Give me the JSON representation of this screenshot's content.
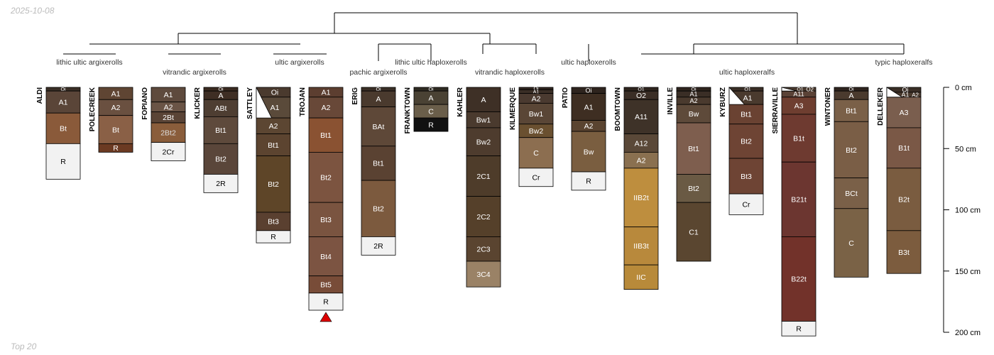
{
  "date_label": "2025-10-08",
  "footer_label": "Top 20",
  "depth_axis": {
    "unit": "cm",
    "max_depth": 200,
    "ticks": [
      {
        "depth": 0,
        "label": "0 cm"
      },
      {
        "depth": 50,
        "label": "50 cm"
      },
      {
        "depth": 100,
        "label": "100 cm"
      },
      {
        "depth": 150,
        "label": "150 cm"
      },
      {
        "depth": 200,
        "label": "200 cm"
      }
    ]
  },
  "group_labels": [
    {
      "text": "lithic ultic argixerolls",
      "profiles": [
        "ALDI",
        "POLECREEK"
      ]
    },
    {
      "text": "vitrandic argixerolls",
      "profiles": [
        "FOPIANO",
        "KLICKER"
      ]
    },
    {
      "text": "ultic argixerolls",
      "profiles": [
        "SATTLEY",
        "TROJAN"
      ]
    },
    {
      "text": "pachic argixerolls",
      "profiles": [
        "ERIG"
      ]
    },
    {
      "text": "lithic ultic haploxerolls",
      "profiles": [
        "FRANKTOWN"
      ]
    },
    {
      "text": "vitrandic haploxerolls",
      "profiles": [
        "KAHLER",
        "KILMERQUE"
      ]
    },
    {
      "text": "ultic haploxerolls",
      "profiles": [
        "PATIO"
      ]
    },
    {
      "text": "ultic haploxeralfs",
      "profiles": [
        "BOOMTOWN",
        "INVILLE",
        "KYBURZ",
        "SIERRAVILLE",
        "WINTONER"
      ]
    },
    {
      "text": "typic haploxeralfs",
      "profiles": [
        "DELLEKER"
      ]
    }
  ],
  "profiles": [
    {
      "name": "ALDI",
      "horizons": [
        {
          "name": "Oi",
          "top": 0,
          "bottom": 3,
          "color": "#3a2e26",
          "text": "#ffffff"
        },
        {
          "name": "A1",
          "top": 3,
          "bottom": 21,
          "color": "#5a4538",
          "text": "#ffffff"
        },
        {
          "name": "Bt",
          "top": 21,
          "bottom": 46,
          "color": "#8a5a3a",
          "text": "#ffffff"
        },
        {
          "name": "R",
          "top": 46,
          "bottom": 75,
          "color": "#f2f2f2",
          "text": "#000000"
        }
      ]
    },
    {
      "name": "POLECREEK",
      "horizons": [
        {
          "name": "A1",
          "top": 0,
          "bottom": 10,
          "color": "#5f4533",
          "text": "#ffffff"
        },
        {
          "name": "A2",
          "top": 10,
          "bottom": 23,
          "color": "#6a5040",
          "text": "#ffffff"
        },
        {
          "name": "Bt",
          "top": 23,
          "bottom": 46,
          "color": "#8a6046",
          "text": "#ffffff"
        },
        {
          "name": "R",
          "top": 46,
          "bottom": 53,
          "color": "#6b3a22",
          "text": "#ffffff"
        }
      ]
    },
    {
      "name": "FOPIANO",
      "horizons": [
        {
          "name": "A1",
          "top": 0,
          "bottom": 12,
          "color": "#5e4a3d",
          "text": "#ffffff"
        },
        {
          "name": "A2",
          "top": 12,
          "bottom": 20,
          "color": "#6a5446",
          "text": "#ffffff"
        },
        {
          "name": "2Bt",
          "top": 20,
          "bottom": 29,
          "color": "#5a4436",
          "text": "#ffffff"
        },
        {
          "name": "2Bt2",
          "top": 29,
          "bottom": 45,
          "color": "#8a5d3b",
          "text": "#dddddd"
        },
        {
          "name": "2Cr",
          "top": 45,
          "bottom": 60,
          "color": "#f2f2f2",
          "text": "#000000"
        }
      ]
    },
    {
      "name": "KLICKER",
      "horizons": [
        {
          "name": "Oi",
          "top": 0,
          "bottom": 3,
          "color": "#3a2a20",
          "text": "#ffffff"
        },
        {
          "name": "A",
          "top": 3,
          "bottom": 10,
          "color": "#3e2e24",
          "text": "#ffffff"
        },
        {
          "name": "ABt",
          "top": 10,
          "bottom": 24,
          "color": "#4e3e32",
          "text": "#ffffff"
        },
        {
          "name": "Bt1",
          "top": 24,
          "bottom": 46,
          "color": "#5e4a3c",
          "text": "#ffffff"
        },
        {
          "name": "Bt2",
          "top": 46,
          "bottom": 71,
          "color": "#5a463a",
          "text": "#ffffff"
        },
        {
          "name": "2R",
          "top": 71,
          "bottom": 86,
          "color": "#f2f2f2",
          "text": "#000000"
        }
      ]
    },
    {
      "name": "SATTLEY",
      "horizons": [
        {
          "name": "Oi",
          "top": 0,
          "bottom": 8,
          "color": "#4a3a2e",
          "text": "#ffffff",
          "diagonal": true
        },
        {
          "name": "A1",
          "top": 8,
          "bottom": 25,
          "color": "#5a4a3a",
          "text": "#ffffff",
          "diagonal": true
        },
        {
          "name": "A2",
          "top": 25,
          "bottom": 38,
          "color": "#5c4632",
          "text": "#ffffff"
        },
        {
          "name": "Bt1",
          "top": 38,
          "bottom": 56,
          "color": "#5c4430",
          "text": "#ffffff"
        },
        {
          "name": "Bt2",
          "top": 56,
          "bottom": 102,
          "color": "#5e4528",
          "text": "#ffffff"
        },
        {
          "name": "Bt3",
          "top": 102,
          "bottom": 117,
          "color": "#5a4030",
          "text": "#ffffff"
        },
        {
          "name": "R",
          "top": 117,
          "bottom": 127,
          "color": "#f2f2f2",
          "text": "#000000"
        }
      ]
    },
    {
      "name": "TROJAN",
      "horizons": [
        {
          "name": "A1",
          "top": 0,
          "bottom": 8,
          "color": "#5c3e30",
          "text": "#ffffff"
        },
        {
          "name": "A2",
          "top": 8,
          "bottom": 25,
          "color": "#684838",
          "text": "#ffffff"
        },
        {
          "name": "Bt1",
          "top": 25,
          "bottom": 53,
          "color": "#8a5232",
          "text": "#ffffff"
        },
        {
          "name": "Bt2",
          "top": 53,
          "bottom": 94,
          "color": "#7c5440",
          "text": "#ffffff"
        },
        {
          "name": "Bt3",
          "top": 94,
          "bottom": 122,
          "color": "#7a5440",
          "text": "#ffffff"
        },
        {
          "name": "Bt4",
          "top": 122,
          "bottom": 154,
          "color": "#7c5442",
          "text": "#ffffff"
        },
        {
          "name": "Bt5",
          "top": 154,
          "bottom": 168,
          "color": "#784c38",
          "text": "#ffffff"
        },
        {
          "name": "R",
          "top": 168,
          "bottom": 182,
          "color": "#f2f2f2",
          "text": "#000000"
        }
      ]
    },
    {
      "name": "ERIG",
      "horizons": [
        {
          "name": "Oi",
          "top": 0,
          "bottom": 3,
          "color": "#3a2e26",
          "text": "#ffffff"
        },
        {
          "name": "A",
          "top": 3,
          "bottom": 16,
          "color": "#4a3a2e",
          "text": "#ffffff"
        },
        {
          "name": "BAt",
          "top": 16,
          "bottom": 48,
          "color": "#5e4838",
          "text": "#ffffff"
        },
        {
          "name": "Bt1",
          "top": 48,
          "bottom": 76,
          "color": "#5a4232",
          "text": "#ffffff"
        },
        {
          "name": "Bt2",
          "top": 76,
          "bottom": 122,
          "color": "#7c5a3e",
          "text": "#ffffff"
        },
        {
          "name": "2R",
          "top": 122,
          "bottom": 137,
          "color": "#f2f2f2",
          "text": "#000000"
        }
      ]
    },
    {
      "name": "FRANKTOWN",
      "horizons": [
        {
          "name": "Oi",
          "top": 0,
          "bottom": 3,
          "color": "#2e2a22",
          "text": "#ffffff"
        },
        {
          "name": "A",
          "top": 3,
          "bottom": 14,
          "color": "#4a4234",
          "text": "#ffffff"
        },
        {
          "name": "C",
          "top": 14,
          "bottom": 25,
          "color": "#6a5e4a",
          "text": "#ffffff"
        },
        {
          "name": "R",
          "top": 25,
          "bottom": 36,
          "color": "#111111",
          "text": "#ffffff"
        }
      ]
    },
    {
      "name": "KAHLER",
      "horizons": [
        {
          "name": "A",
          "top": 0,
          "bottom": 20,
          "color": "#3e3026",
          "text": "#ffffff"
        },
        {
          "name": "Bw1",
          "top": 20,
          "bottom": 33,
          "color": "#4a3a2e",
          "text": "#ffffff"
        },
        {
          "name": "Bw2",
          "top": 33,
          "bottom": 56,
          "color": "#4e3c2e",
          "text": "#ffffff"
        },
        {
          "name": "2C1",
          "top": 56,
          "bottom": 89,
          "color": "#4e3c2a",
          "text": "#ffffff"
        },
        {
          "name": "2C2",
          "top": 89,
          "bottom": 122,
          "color": "#55402a",
          "text": "#ffffff"
        },
        {
          "name": "2C3",
          "top": 122,
          "bottom": 142,
          "color": "#5a4430",
          "text": "#ffffff"
        },
        {
          "name": "3C4",
          "top": 142,
          "bottom": 163,
          "color": "#9a8266",
          "text": "#ffffff"
        }
      ]
    },
    {
      "name": "KILMERQUE",
      "horizons": [
        {
          "name": "Oi",
          "top": 0,
          "bottom": 2,
          "color": "#2e241e",
          "text": "#ffffff"
        },
        {
          "name": "A1",
          "top": 2,
          "bottom": 5,
          "color": "#3a2e26",
          "text": "#ffffff"
        },
        {
          "name": "A2",
          "top": 5,
          "bottom": 13,
          "color": "#4a3a30",
          "text": "#ffffff"
        },
        {
          "name": "Bw1",
          "top": 13,
          "bottom": 30,
          "color": "#5a4636",
          "text": "#ffffff"
        },
        {
          "name": "Bw2",
          "top": 30,
          "bottom": 41,
          "color": "#6a5030",
          "text": "#ffffff"
        },
        {
          "name": "C",
          "top": 41,
          "bottom": 66,
          "color": "#8c6e50",
          "text": "#ffffff"
        },
        {
          "name": "Cr",
          "top": 66,
          "bottom": 81,
          "color": "#f2f2f2",
          "text": "#000000"
        }
      ]
    },
    {
      "name": "PATIO",
      "horizons": [
        {
          "name": "Oi",
          "top": 0,
          "bottom": 5,
          "color": "#2e241e",
          "text": "#ffffff"
        },
        {
          "name": "A1",
          "top": 5,
          "bottom": 27,
          "color": "#3e2e22",
          "text": "#ffffff"
        },
        {
          "name": "A2",
          "top": 27,
          "bottom": 36,
          "color": "#5a4430",
          "text": "#ffffff"
        },
        {
          "name": "Bw",
          "top": 36,
          "bottom": 69,
          "color": "#7a5e40",
          "text": "#ffffff"
        },
        {
          "name": "R",
          "top": 69,
          "bottom": 84,
          "color": "#f2f2f2",
          "text": "#000000"
        }
      ]
    },
    {
      "name": "BOOMTOWN",
      "horizons": [
        {
          "name": "O1",
          "top": 0,
          "bottom": 3,
          "color": "#2e241e",
          "text": "#ffffff"
        },
        {
          "name": "O2",
          "top": 3,
          "bottom": 10,
          "color": "#3a2e26",
          "text": "#ffffff"
        },
        {
          "name": "A11",
          "top": 10,
          "bottom": 38,
          "color": "#3e3228",
          "text": "#ffffff"
        },
        {
          "name": "A12",
          "top": 38,
          "bottom": 53,
          "color": "#5a4838",
          "text": "#ffffff"
        },
        {
          "name": "A2",
          "top": 53,
          "bottom": 66,
          "color": "#8a7050",
          "text": "#ffffff"
        },
        {
          "name": "IIB2t",
          "top": 66,
          "bottom": 114,
          "color": "#be8e3e",
          "text": "#ffffff"
        },
        {
          "name": "IIB3t",
          "top": 114,
          "bottom": 145,
          "color": "#b8893c",
          "text": "#ffffff"
        },
        {
          "name": "IIC",
          "top": 145,
          "bottom": 165,
          "color": "#b88a3a",
          "text": "#ffffff"
        }
      ]
    },
    {
      "name": "INVILLE",
      "horizons": [
        {
          "name": "Oi",
          "top": 0,
          "bottom": 3,
          "color": "#2e241e",
          "text": "#ffffff"
        },
        {
          "name": "A1",
          "top": 3,
          "bottom": 8,
          "color": "#3a2e26",
          "text": "#ffffff"
        },
        {
          "name": "A2",
          "top": 8,
          "bottom": 14,
          "color": "#4a3a2e",
          "text": "#ffffff"
        },
        {
          "name": "Bw",
          "top": 14,
          "bottom": 29,
          "color": "#5e4a3a",
          "text": "#ffffff"
        },
        {
          "name": "Bt1",
          "top": 29,
          "bottom": 71,
          "color": "#7e5e4e",
          "text": "#ffffff"
        },
        {
          "name": "Bt2",
          "top": 71,
          "bottom": 94,
          "color": "#6a5a44",
          "text": "#ffffff"
        },
        {
          "name": "C1",
          "top": 94,
          "bottom": 142,
          "color": "#5a4630",
          "text": "#ffffff"
        }
      ]
    },
    {
      "name": "KYBURZ",
      "horizons": [
        {
          "name": "O1",
          "top": 0,
          "bottom": 3,
          "color": "#3a2e26",
          "text": "#ffffff",
          "diagonal": true
        },
        {
          "name": "A1",
          "top": 3,
          "bottom": 14,
          "color": "#4a3a2e",
          "text": "#ffffff",
          "diagonal": true
        },
        {
          "name": "Bt1",
          "top": 14,
          "bottom": 30,
          "color": "#6a4232",
          "text": "#ffffff"
        },
        {
          "name": "Bt2",
          "top": 30,
          "bottom": 58,
          "color": "#6e4434",
          "text": "#ffffff"
        },
        {
          "name": "Bt3",
          "top": 58,
          "bottom": 87,
          "color": "#6e4434",
          "text": "#ffffff"
        },
        {
          "name": "Cr",
          "top": 87,
          "bottom": 104,
          "color": "#f2f2f2",
          "text": "#000000"
        }
      ]
    },
    {
      "name": "SIERRAVILLE",
      "horizons": [
        {
          "name": "O1",
          "top": 0,
          "bottom": 3,
          "color": "#4a3a2e",
          "text": "#ffffff",
          "diagonal": true
        },
        {
          "name": "A11",
          "top": 3,
          "bottom": 8,
          "color": "#5a4236",
          "text": "#ffffff"
        },
        {
          "name": "O2",
          "top": 0,
          "bottom": 3,
          "color": "#3a2e26",
          "text": "#ffffff",
          "right_label": true
        },
        {
          "name": "A3",
          "top": 8,
          "bottom": 22,
          "color": "#6e3e30",
          "text": "#ffffff"
        },
        {
          "name": "B1t",
          "top": 22,
          "bottom": 61,
          "color": "#6e3a30",
          "text": "#ffffff"
        },
        {
          "name": "B21t",
          "top": 61,
          "bottom": 122,
          "color": "#6c3630",
          "text": "#ffffff"
        },
        {
          "name": "B22t",
          "top": 122,
          "bottom": 191,
          "color": "#72322a",
          "text": "#ffffff"
        },
        {
          "name": "R",
          "top": 191,
          "bottom": 203,
          "color": "#f2f2f2",
          "text": "#000000"
        }
      ]
    },
    {
      "name": "WINTONER",
      "horizons": [
        {
          "name": "Oi",
          "top": 0,
          "bottom": 3,
          "color": "#2e241e",
          "text": "#ffffff"
        },
        {
          "name": "A",
          "top": 3,
          "bottom": 10,
          "color": "#4a3a2e",
          "text": "#ffffff"
        },
        {
          "name": "Bt1",
          "top": 10,
          "bottom": 28,
          "color": "#7a6048",
          "text": "#ffffff"
        },
        {
          "name": "Bt2",
          "top": 28,
          "bottom": 74,
          "color": "#7a5e46",
          "text": "#ffffff"
        },
        {
          "name": "BCt",
          "top": 74,
          "bottom": 99,
          "color": "#7a6048",
          "text": "#ffffff"
        },
        {
          "name": "C",
          "top": 99,
          "bottom": 155,
          "color": "#7a6246",
          "text": "#ffffff"
        }
      ]
    },
    {
      "name": "DELLEKER",
      "horizons": [
        {
          "name": "Oi",
          "top": 0,
          "bottom": 4,
          "color": "#3a2e26",
          "text": "#ffffff",
          "diagonal": true
        },
        {
          "name": "A1",
          "top": 4,
          "bottom": 8,
          "color": "#4a3a2e",
          "text": "#ffffff",
          "diagonal": true
        },
        {
          "name": "A2",
          "top": 4,
          "bottom": 8,
          "color": "#4a3a2e",
          "text": "#ffffff",
          "right_label": true
        },
        {
          "name": "A3",
          "top": 8,
          "bottom": 33,
          "color": "#7a5e4e",
          "text": "#ffffff"
        },
        {
          "name": "B1t",
          "top": 33,
          "bottom": 66,
          "color": "#7a5846",
          "text": "#ffffff"
        },
        {
          "name": "B2t",
          "top": 66,
          "bottom": 117,
          "color": "#7a5c40",
          "text": "#ffffff"
        },
        {
          "name": "B3t",
          "top": 117,
          "bottom": 152,
          "color": "#7c5c3e",
          "text": "#ffffff"
        }
      ]
    }
  ],
  "marker": {
    "profile": "TROJAN",
    "shape": "triangle",
    "color": "#dd0000"
  }
}
